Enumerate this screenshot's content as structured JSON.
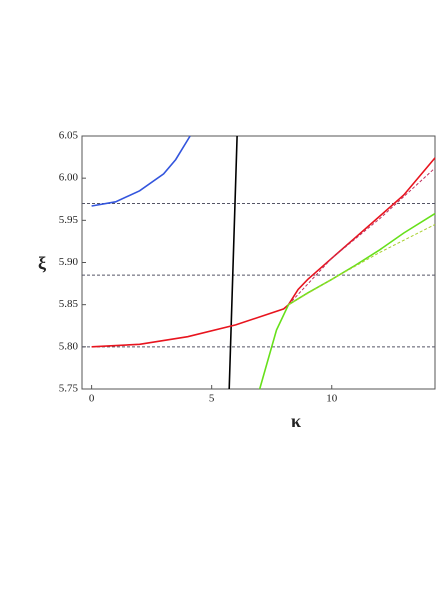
{
  "chart_data": {
    "type": "line",
    "x_label": "κ",
    "y_label": "ξ",
    "xlim": [
      -0.4,
      14.3
    ],
    "ylim": [
      5.75,
      6.05
    ],
    "xticks": [
      0,
      5,
      10
    ],
    "yticks": [
      5.75,
      {
        "value": 5.8,
        "label": "5.80"
      },
      5.85,
      {
        "value": 5.9,
        "label": "5.90"
      },
      5.95,
      {
        "value": 6,
        "label": "6.00"
      },
      6.05
    ],
    "hlines": [
      5.8,
      5.885,
      5.97
    ],
    "series": [
      {
        "color": "#3355dd",
        "dashed": false,
        "x": [
          0,
          1,
          2,
          3,
          3.5,
          4.1
        ],
        "values": [
          5.967,
          5.972,
          5.985,
          6.005,
          6.022,
          6.05
        ]
      },
      {
        "color": "#000000",
        "dashed": false,
        "x": [
          5.73,
          6.06
        ],
        "values": [
          5.75,
          6.05
        ]
      },
      {
        "color": "#e8141e",
        "dashed": false,
        "x": [
          0,
          2,
          4,
          6,
          8,
          8.2,
          8.6,
          9,
          10,
          11,
          12,
          13,
          14.3
        ],
        "values": [
          5.8,
          5.803,
          5.812,
          5.826,
          5.845,
          5.85,
          5.868,
          5.88,
          5.905,
          5.93,
          5.955,
          5.98,
          6.024
        ]
      },
      {
        "color": "#c03060",
        "dashed": true,
        "x": [
          8.2,
          10,
          12,
          14.3
        ],
        "values": [
          5.85,
          5.905,
          5.952,
          6.012
        ]
      },
      {
        "color": "#66e01a",
        "dashed": false,
        "x": [
          7,
          7.3,
          7.7,
          8.2,
          9,
          10,
          11,
          12,
          13,
          14.3
        ],
        "values": [
          5.75,
          5.78,
          5.82,
          5.85,
          5.864,
          5.88,
          5.897,
          5.915,
          5.935,
          5.958
        ]
      },
      {
        "color": "#a8d030",
        "dashed": true,
        "x": [
          8.2,
          10,
          12,
          14.3
        ],
        "values": [
          5.85,
          5.88,
          5.912,
          5.945
        ]
      }
    ]
  }
}
